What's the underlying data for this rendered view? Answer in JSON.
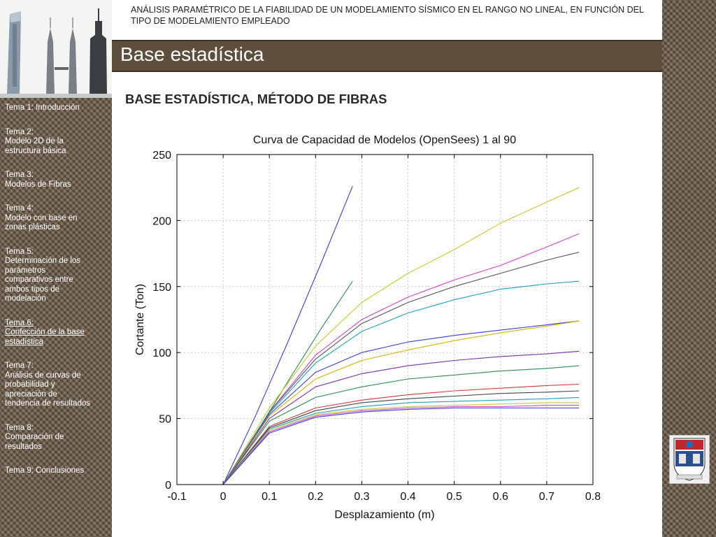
{
  "header": {
    "text": "ANÁLISIS PARAMÉTRICO DE LA FIABILIDAD DE UN MODELAMIENTO SÍSMICO EN EL RANGO NO LINEAL, EN FUNCIÓN DEL TIPO DE MODELAMIENTO EMPLEADO"
  },
  "slide": {
    "title": "Base estadística",
    "section_heading": "BASE ESTADÍSTICA, MÉTODO DE FIBRAS"
  },
  "sidebar": {
    "items": [
      {
        "lines": [
          "Tema 1: Introducción"
        ],
        "active": false
      },
      {
        "lines": [
          "Tema 2:",
          "Modelo 2D de la",
          "estructura básica"
        ],
        "active": false
      },
      {
        "lines": [
          "Tema 3:",
          "Modelos de Fibras"
        ],
        "active": false
      },
      {
        "lines": [
          "Tema 4:",
          "Modelo con base en",
          "zonas plásticas"
        ],
        "active": false
      },
      {
        "lines": [
          "Tema 5:",
          "Determinación de los",
          "parámetros",
          "comparativos entre",
          "ambos tipos de",
          "modelación"
        ],
        "active": false
      },
      {
        "lines": [
          "Tema 6:",
          "Confección de la base",
          "estadística"
        ],
        "active": true
      },
      {
        "lines": [
          "Tema 7:",
          "Análisis de curvas de",
          "probabilidad y",
          "apreciación de",
          "tendencia de resultados"
        ],
        "active": false
      },
      {
        "lines": [
          "Tema 8:",
          "Comparación de",
          "resultados"
        ],
        "active": false
      },
      {
        "lines": [
          "Tema 9: Conclusiones"
        ],
        "active": false
      }
    ]
  },
  "colors": {
    "grid": "#c8c8c8",
    "axis": "#000000",
    "title_bar": "#5e4e3c"
  },
  "chart_data": {
    "type": "line",
    "title": "Curva de Capacidad de Modelos (OpenSees) 1 al 90",
    "xlabel": "Desplazamiento (m)",
    "ylabel": "Cortante (Ton)",
    "xlim": [
      -0.1,
      0.8
    ],
    "ylim": [
      0,
      250
    ],
    "xticks": [
      -0.1,
      0,
      0.1,
      0.2,
      0.3,
      0.4,
      0.5,
      0.6,
      0.7,
      0.8
    ],
    "yticks": [
      0,
      50,
      100,
      150,
      200,
      250
    ],
    "xtick_labels": [
      "-0.1",
      "0",
      "0.1",
      "0.2",
      "0.3",
      "0.4",
      "0.5",
      "0.6",
      "0.7",
      "0.8"
    ],
    "ytick_labels": [
      "0",
      "50",
      "100",
      "150",
      "200",
      "250"
    ],
    "grid": true,
    "series_count": 90,
    "series": [
      {
        "color": "#3b3bd6",
        "x": [
          0,
          0.07,
          0.14,
          0.21,
          0.28
        ],
        "y": [
          0,
          52,
          108,
          166,
          226
        ]
      },
      {
        "color": "#2e8b57",
        "x": [
          0,
          0.07,
          0.14,
          0.21,
          0.28
        ],
        "y": [
          0,
          38,
          78,
          117,
          154
        ]
      },
      {
        "color": "#c8c832",
        "x": [
          0,
          0.1,
          0.2,
          0.3,
          0.4,
          0.5,
          0.6,
          0.7,
          0.77
        ],
        "y": [
          0,
          58,
          105,
          138,
          160,
          178,
          198,
          214,
          225
        ]
      },
      {
        "color": "#cc44cc",
        "x": [
          0,
          0.1,
          0.2,
          0.3,
          0.4,
          0.5,
          0.6,
          0.7,
          0.77
        ],
        "y": [
          0,
          55,
          98,
          125,
          142,
          155,
          166,
          180,
          190
        ]
      },
      {
        "color": "#555555",
        "x": [
          0,
          0.1,
          0.2,
          0.3,
          0.4,
          0.5,
          0.6,
          0.7,
          0.77
        ],
        "y": [
          0,
          55,
          95,
          122,
          138,
          150,
          160,
          170,
          176
        ]
      },
      {
        "color": "#1f9fbf",
        "x": [
          0,
          0.1,
          0.2,
          0.3,
          0.4,
          0.5,
          0.6,
          0.7,
          0.77
        ],
        "y": [
          0,
          54,
          92,
          116,
          130,
          140,
          148,
          152,
          154
        ]
      },
      {
        "color": "#3b3bd6",
        "x": [
          0,
          0.1,
          0.2,
          0.3,
          0.4,
          0.5,
          0.6,
          0.7,
          0.77
        ],
        "y": [
          0,
          53,
          85,
          100,
          108,
          113,
          117,
          121,
          124
        ]
      },
      {
        "color": "#d4b400",
        "x": [
          0,
          0.1,
          0.2,
          0.3,
          0.4,
          0.5,
          0.6,
          0.7,
          0.77
        ],
        "y": [
          0,
          52,
          80,
          94,
          102,
          109,
          115,
          120,
          124
        ]
      },
      {
        "color": "#7a2fa8",
        "x": [
          0,
          0.1,
          0.2,
          0.3,
          0.4,
          0.5,
          0.6,
          0.7,
          0.77
        ],
        "y": [
          0,
          50,
          74,
          84,
          90,
          94,
          97,
          99,
          101
        ]
      },
      {
        "color": "#2e8b57",
        "x": [
          0,
          0.1,
          0.2,
          0.3,
          0.4,
          0.5,
          0.6,
          0.7,
          0.77
        ],
        "y": [
          0,
          48,
          66,
          74,
          80,
          83,
          86,
          88,
          90
        ]
      },
      {
        "color": "#d43a3a",
        "x": [
          0,
          0.1,
          0.2,
          0.3,
          0.4,
          0.5,
          0.6,
          0.7,
          0.77
        ],
        "y": [
          0,
          44,
          58,
          64,
          68,
          71,
          73,
          75,
          76
        ]
      },
      {
        "color": "#444444",
        "x": [
          0,
          0.1,
          0.2,
          0.3,
          0.4,
          0.5,
          0.6,
          0.7,
          0.77
        ],
        "y": [
          0,
          43,
          56,
          62,
          65,
          67,
          69,
          70,
          71
        ]
      },
      {
        "color": "#1f9fbf",
        "x": [
          0,
          0.1,
          0.2,
          0.3,
          0.4,
          0.5,
          0.6,
          0.7,
          0.77
        ],
        "y": [
          0,
          42,
          54,
          59,
          62,
          63,
          64,
          65,
          66
        ]
      },
      {
        "color": "#c8c832",
        "x": [
          0,
          0.1,
          0.2,
          0.3,
          0.4,
          0.5,
          0.6,
          0.7,
          0.77
        ],
        "y": [
          0,
          41,
          53,
          57,
          59,
          60,
          61,
          62,
          62
        ]
      },
      {
        "color": "#cc44cc",
        "x": [
          0,
          0.1,
          0.2,
          0.3,
          0.4,
          0.5,
          0.6,
          0.7,
          0.77
        ],
        "y": [
          0,
          40,
          52,
          56,
          58,
          59,
          59,
          60,
          60
        ]
      },
      {
        "color": "#3b3bd6",
        "x": [
          0,
          0.1,
          0.2,
          0.3,
          0.4,
          0.5,
          0.6,
          0.7,
          0.77
        ],
        "y": [
          0,
          39,
          51,
          55,
          57,
          58,
          58,
          58,
          58
        ]
      }
    ]
  }
}
